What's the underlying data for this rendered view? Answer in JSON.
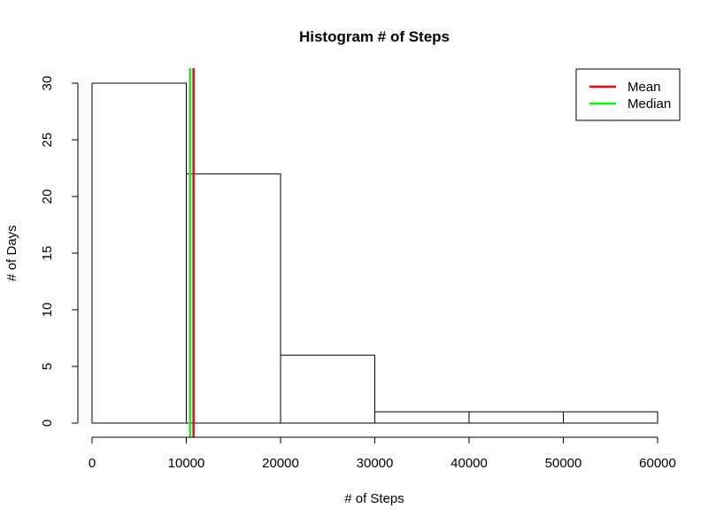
{
  "chart_data": {
    "type": "histogram",
    "title": "Histogram # of Steps",
    "xlabel": "# of Steps",
    "ylabel": "# of Days",
    "xlim": [
      0,
      60000
    ],
    "ylim": [
      0,
      30
    ],
    "bins": [
      {
        "from": 0,
        "to": 10000,
        "count": 30
      },
      {
        "from": 10000,
        "to": 20000,
        "count": 22
      },
      {
        "from": 20000,
        "to": 30000,
        "count": 6
      },
      {
        "from": 30000,
        "to": 40000,
        "count": 1
      },
      {
        "from": 40000,
        "to": 50000,
        "count": 1
      },
      {
        "from": 50000,
        "to": 60000,
        "count": 1
      }
    ],
    "x_ticks": [
      {
        "value": 0,
        "label": "0"
      },
      {
        "value": 10000,
        "label": "10000"
      },
      {
        "value": 20000,
        "label": "20000"
      },
      {
        "value": 30000,
        "label": "30000"
      },
      {
        "value": 40000,
        "label": "40000"
      },
      {
        "value": 50000,
        "label": "50000"
      },
      {
        "value": 60000,
        "label": "60000"
      }
    ],
    "y_ticks": [
      {
        "value": 0,
        "label": "0"
      },
      {
        "value": 5,
        "label": "5"
      },
      {
        "value": 10,
        "label": "10"
      },
      {
        "value": 15,
        "label": "15"
      },
      {
        "value": 20,
        "label": "20"
      },
      {
        "value": 25,
        "label": "25"
      },
      {
        "value": 30,
        "label": "30"
      }
    ],
    "vlines": [
      {
        "name": "Mean",
        "value": 10766,
        "color": "#ff0000"
      },
      {
        "name": "Median",
        "value": 10395,
        "color": "#00ff00"
      }
    ],
    "legend": {
      "position": "top-right",
      "entries": [
        {
          "label": "Mean",
          "color": "#ff0000"
        },
        {
          "label": "Median",
          "color": "#00ff00"
        }
      ]
    },
    "grid": false
  }
}
